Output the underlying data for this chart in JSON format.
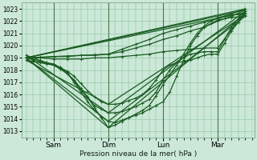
{
  "xlabel": "Pression niveau de la mer( hPa )",
  "ylim": [
    1012.5,
    1023.5
  ],
  "yticks": [
    1013,
    1014,
    1015,
    1016,
    1017,
    1018,
    1019,
    1020,
    1021,
    1022,
    1023
  ],
  "xlim": [
    -2,
    100
  ],
  "xtick_positions": [
    12,
    36,
    60,
    84
  ],
  "xtick_labels": [
    "Sam",
    "Dim",
    "Lun",
    "Mar"
  ],
  "bg_color": "#cce8d8",
  "grid_color": "#99ccaa",
  "line_color": "#1a5c22",
  "marker_size": 2.5,
  "line_width": 0.9,
  "straight_lines": [
    {
      "x": [
        0,
        36,
        96
      ],
      "y": [
        1019.0,
        1013.3,
        1022.6
      ]
    },
    {
      "x": [
        0,
        36,
        96
      ],
      "y": [
        1019.0,
        1013.8,
        1022.4
      ]
    },
    {
      "x": [
        0,
        36,
        96
      ],
      "y": [
        1019.2,
        1014.5,
        1022.8
      ]
    },
    {
      "x": [
        0,
        36,
        96
      ],
      "y": [
        1018.8,
        1015.2,
        1022.5
      ]
    },
    {
      "x": [
        0,
        96
      ],
      "y": [
        1019.0,
        1022.7
      ]
    },
    {
      "x": [
        0,
        96
      ],
      "y": [
        1019.0,
        1023.0
      ]
    },
    {
      "x": [
        0,
        96
      ],
      "y": [
        1019.0,
        1022.9
      ]
    }
  ],
  "dense_lines": [
    {
      "x": [
        0,
        3,
        6,
        9,
        12,
        15,
        18,
        21,
        24,
        27,
        30,
        33,
        36,
        39,
        42,
        45,
        48,
        51,
        54,
        57,
        60,
        63,
        66,
        69,
        72,
        75,
        78,
        81,
        84,
        87,
        90,
        93,
        96
      ],
      "y": [
        1019.0,
        1018.85,
        1018.7,
        1018.55,
        1018.4,
        1018.1,
        1017.7,
        1017.2,
        1016.5,
        1015.8,
        1014.9,
        1014.1,
        1013.3,
        1013.5,
        1013.8,
        1014.1,
        1014.4,
        1014.7,
        1015.1,
        1015.9,
        1016.8,
        1017.6,
        1018.4,
        1019.3,
        1020.2,
        1021.0,
        1021.6,
        1022.0,
        1022.3,
        1022.4,
        1022.5,
        1022.55,
        1022.6
      ]
    },
    {
      "x": [
        0,
        3,
        6,
        9,
        12,
        15,
        18,
        21,
        24,
        27,
        30,
        33,
        36,
        39,
        42,
        45,
        48,
        51,
        54,
        57,
        60,
        63,
        66,
        69,
        72,
        75,
        78,
        81,
        84,
        87,
        90,
        93,
        96
      ],
      "y": [
        1019.0,
        1018.9,
        1018.7,
        1018.6,
        1018.5,
        1018.2,
        1017.8,
        1017.0,
        1016.2,
        1015.4,
        1014.7,
        1014.2,
        1013.8,
        1013.7,
        1013.9,
        1014.1,
        1014.3,
        1014.5,
        1014.8,
        1015.1,
        1015.4,
        1016.2,
        1017.5,
        1018.8,
        1020.0,
        1020.8,
        1021.5,
        1021.8,
        1022.1,
        1022.2,
        1022.3,
        1022.35,
        1022.4
      ]
    },
    {
      "x": [
        0,
        3,
        6,
        9,
        12,
        15,
        18,
        21,
        24,
        27,
        30,
        33,
        36,
        39,
        42,
        45,
        48,
        51,
        54,
        57,
        60,
        63,
        66,
        69,
        72,
        75,
        78,
        81,
        84,
        87,
        90,
        93,
        96
      ],
      "y": [
        1019.2,
        1019.0,
        1018.8,
        1018.6,
        1018.4,
        1018.1,
        1017.7,
        1017.1,
        1016.4,
        1015.7,
        1015.1,
        1014.8,
        1014.5,
        1014.5,
        1014.6,
        1014.8,
        1015.0,
        1015.3,
        1015.6,
        1016.2,
        1017.2,
        1018.0,
        1018.6,
        1019.0,
        1019.3,
        1019.4,
        1019.5,
        1019.5,
        1019.5,
        1020.5,
        1021.5,
        1022.2,
        1022.8
      ]
    },
    {
      "x": [
        0,
        3,
        6,
        9,
        12,
        15,
        18,
        21,
        24,
        27,
        30,
        33,
        36,
        39,
        42,
        45,
        48,
        51,
        54,
        57,
        60,
        63,
        66,
        69,
        72,
        75,
        78,
        81,
        84,
        87,
        90,
        93,
        96
      ],
      "y": [
        1018.8,
        1018.7,
        1018.6,
        1018.5,
        1018.4,
        1018.2,
        1017.9,
        1017.5,
        1016.9,
        1016.3,
        1015.8,
        1015.4,
        1015.2,
        1015.2,
        1015.3,
        1015.5,
        1015.7,
        1016.0,
        1016.5,
        1017.2,
        1018.0,
        1018.4,
        1018.6,
        1018.7,
        1018.8,
        1019.0,
        1019.2,
        1019.3,
        1019.3,
        1020.2,
        1021.2,
        1021.9,
        1022.5
      ]
    },
    {
      "x": [
        0,
        6,
        12,
        18,
        24,
        30,
        36,
        42,
        48,
        54,
        60,
        66,
        72,
        78,
        84,
        90,
        96
      ],
      "y": [
        1019.0,
        1019.0,
        1018.9,
        1018.9,
        1018.9,
        1019.0,
        1019.0,
        1019.1,
        1019.2,
        1019.3,
        1019.5,
        1019.6,
        1019.7,
        1019.8,
        1019.8,
        1021.3,
        1022.7
      ]
    },
    {
      "x": [
        0,
        6,
        12,
        18,
        24,
        30,
        36,
        42,
        48,
        54,
        60,
        66,
        72,
        78,
        84,
        90,
        96
      ],
      "y": [
        1019.0,
        1019.05,
        1019.1,
        1019.15,
        1019.2,
        1019.25,
        1019.3,
        1019.7,
        1020.1,
        1020.5,
        1021.0,
        1021.3,
        1021.6,
        1021.9,
        1022.2,
        1022.6,
        1023.0
      ]
    },
    {
      "x": [
        0,
        6,
        12,
        18,
        24,
        30,
        36,
        42,
        48,
        54,
        60,
        66,
        72,
        78,
        84,
        90,
        96
      ],
      "y": [
        1019.0,
        1019.0,
        1019.1,
        1019.1,
        1019.2,
        1019.2,
        1019.3,
        1019.5,
        1019.8,
        1020.1,
        1020.5,
        1020.8,
        1021.2,
        1021.5,
        1022.0,
        1022.4,
        1022.9
      ]
    }
  ]
}
